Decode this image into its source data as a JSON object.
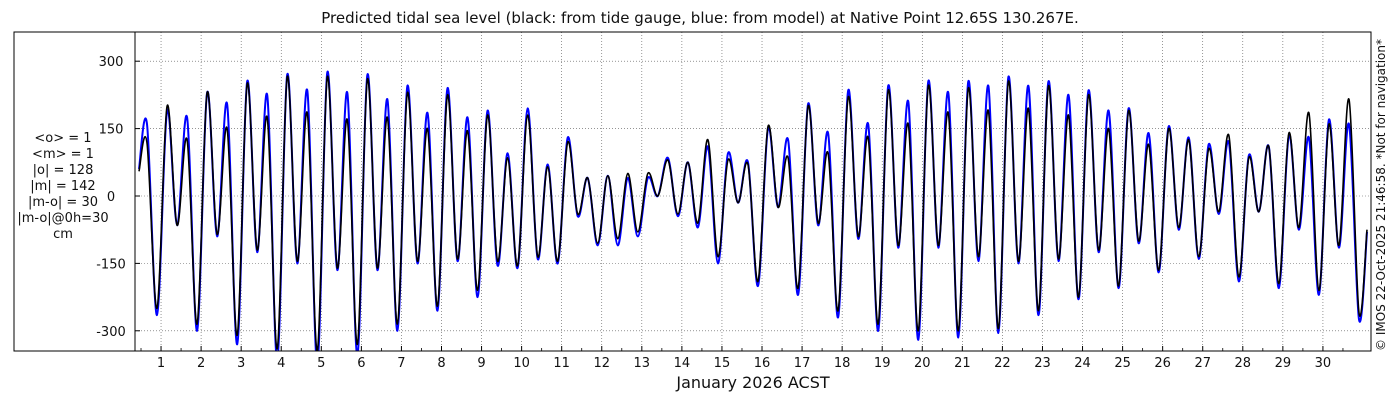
{
  "title": "Predicted tidal sea level (black: from tide gauge, blue: from model) at Native Point 12.65S 130.267E.",
  "stats": [
    "<o> = 1",
    "<m> = 1",
    "|o| = 128",
    "|m| = 142",
    "|m-o| = 30",
    "|m-o|@0h=30",
    "cm"
  ],
  "copyright": "© IMOS 22-Oct-2025 21:46:58. *Not for navigation*",
  "colors": {
    "observed": "#000000",
    "model": "#0000ff",
    "grid": "#555555",
    "axis": "#000000"
  },
  "chart_data": {
    "type": "line",
    "title": "Predicted tidal sea level (black: from tide gauge, blue: from model) at Native Point 12.65S 130.267E.",
    "xlabel": "January 2026 ACST",
    "ylabel": "",
    "x_unit": "day of January 2026",
    "xlim": [
      0.35,
      31.2
    ],
    "ylim": [
      -345,
      365
    ],
    "x_ticks": [
      1,
      2,
      3,
      4,
      5,
      6,
      7,
      8,
      9,
      10,
      11,
      12,
      13,
      14,
      15,
      16,
      17,
      18,
      19,
      20,
      21,
      22,
      23,
      24,
      25,
      26,
      27,
      28,
      29,
      30
    ],
    "y_ticks": [
      -300,
      -150,
      0,
      150,
      300
    ],
    "grid": true,
    "legend": "none",
    "series": [
      {
        "color": "#0000ff",
        "points": [
          [
            0.45,
            60
          ],
          [
            0.65,
            160
          ],
          [
            0.9,
            -265
          ],
          [
            1.15,
            190
          ],
          [
            1.4,
            -65
          ],
          [
            1.65,
            175
          ],
          [
            1.9,
            -300
          ],
          [
            2.15,
            230
          ],
          [
            2.4,
            -90
          ],
          [
            2.65,
            205
          ],
          [
            2.9,
            -330
          ],
          [
            3.15,
            255
          ],
          [
            3.4,
            -125
          ],
          [
            3.65,
            225
          ],
          [
            3.9,
            -365
          ],
          [
            4.15,
            270
          ],
          [
            4.4,
            -150
          ],
          [
            4.65,
            235
          ],
          [
            4.9,
            -375
          ],
          [
            5.15,
            275
          ],
          [
            5.4,
            -165
          ],
          [
            5.65,
            230
          ],
          [
            5.9,
            -355
          ],
          [
            6.15,
            270
          ],
          [
            6.4,
            -165
          ],
          [
            6.65,
            215
          ],
          [
            6.9,
            -300
          ],
          [
            7.15,
            245
          ],
          [
            7.4,
            -150
          ],
          [
            7.65,
            185
          ],
          [
            7.9,
            -255
          ],
          [
            8.15,
            240
          ],
          [
            8.4,
            -145
          ],
          [
            8.65,
            175
          ],
          [
            8.9,
            -225
          ],
          [
            9.15,
            190
          ],
          [
            9.4,
            -155
          ],
          [
            9.65,
            95
          ],
          [
            9.9,
            -160
          ],
          [
            10.15,
            195
          ],
          [
            10.4,
            -140
          ],
          [
            10.65,
            70
          ],
          [
            10.9,
            -150
          ],
          [
            11.15,
            130
          ],
          [
            11.4,
            -45
          ],
          [
            11.65,
            40
          ],
          [
            11.9,
            -110
          ],
          [
            12.15,
            45
          ],
          [
            12.4,
            -110
          ],
          [
            12.65,
            40
          ],
          [
            12.9,
            -90
          ],
          [
            13.15,
            40
          ],
          [
            13.4,
            0
          ],
          [
            13.65,
            85
          ],
          [
            13.9,
            -45
          ],
          [
            14.15,
            75
          ],
          [
            14.4,
            -70
          ],
          [
            14.65,
            110
          ],
          [
            14.9,
            -150
          ],
          [
            15.15,
            95
          ],
          [
            15.4,
            -15
          ],
          [
            15.65,
            75
          ],
          [
            15.9,
            -200
          ],
          [
            16.15,
            150
          ],
          [
            16.4,
            -25
          ],
          [
            16.65,
            125
          ],
          [
            16.9,
            -220
          ],
          [
            17.15,
            205
          ],
          [
            17.4,
            -65
          ],
          [
            17.65,
            140
          ],
          [
            17.9,
            -270
          ],
          [
            18.15,
            235
          ],
          [
            18.4,
            -95
          ],
          [
            18.65,
            160
          ],
          [
            18.9,
            -300
          ],
          [
            19.15,
            245
          ],
          [
            19.4,
            -115
          ],
          [
            19.65,
            210
          ],
          [
            19.9,
            -320
          ],
          [
            20.15,
            255
          ],
          [
            20.4,
            -115
          ],
          [
            20.65,
            230
          ],
          [
            20.9,
            -315
          ],
          [
            21.15,
            255
          ],
          [
            21.4,
            -145
          ],
          [
            21.65,
            245
          ],
          [
            21.9,
            -305
          ],
          [
            22.15,
            265
          ],
          [
            22.4,
            -150
          ],
          [
            22.65,
            245
          ],
          [
            22.9,
            -265
          ],
          [
            23.15,
            255
          ],
          [
            23.4,
            -145
          ],
          [
            23.65,
            225
          ],
          [
            23.9,
            -230
          ],
          [
            24.15,
            235
          ],
          [
            24.4,
            -125
          ],
          [
            24.65,
            190
          ],
          [
            24.9,
            -205
          ],
          [
            25.15,
            195
          ],
          [
            25.4,
            -105
          ],
          [
            25.65,
            140
          ],
          [
            25.9,
            -170
          ],
          [
            26.15,
            155
          ],
          [
            26.4,
            -75
          ],
          [
            26.65,
            130
          ],
          [
            26.9,
            -140
          ],
          [
            27.15,
            115
          ],
          [
            27.4,
            -40
          ],
          [
            27.65,
            120
          ],
          [
            27.9,
            -190
          ],
          [
            28.15,
            90
          ],
          [
            28.4,
            -35
          ],
          [
            28.65,
            110
          ],
          [
            28.9,
            -205
          ],
          [
            29.15,
            135
          ],
          [
            29.4,
            -75
          ],
          [
            29.65,
            130
          ],
          [
            29.9,
            -220
          ],
          [
            30.15,
            170
          ],
          [
            30.4,
            -115
          ],
          [
            30.65,
            160
          ],
          [
            30.9,
            -275
          ],
          [
            31.1,
            -80
          ]
        ]
      },
      {
        "color": "#000000",
        "points": [
          [
            0.45,
            55
          ],
          [
            0.65,
            118
          ],
          [
            0.9,
            -250
          ],
          [
            1.15,
            200
          ],
          [
            1.4,
            -65
          ],
          [
            1.65,
            125
          ],
          [
            1.9,
            -285
          ],
          [
            2.15,
            230
          ],
          [
            2.4,
            -85
          ],
          [
            2.65,
            150
          ],
          [
            2.9,
            -310
          ],
          [
            3.15,
            250
          ],
          [
            3.4,
            -120
          ],
          [
            3.65,
            175
          ],
          [
            3.9,
            -340
          ],
          [
            4.15,
            265
          ],
          [
            4.4,
            -145
          ],
          [
            4.65,
            185
          ],
          [
            4.9,
            -345
          ],
          [
            5.15,
            265
          ],
          [
            5.4,
            -160
          ],
          [
            5.65,
            170
          ],
          [
            5.9,
            -330
          ],
          [
            6.15,
            260
          ],
          [
            6.4,
            -160
          ],
          [
            6.65,
            175
          ],
          [
            6.9,
            -285
          ],
          [
            7.15,
            230
          ],
          [
            7.4,
            -145
          ],
          [
            7.65,
            150
          ],
          [
            7.9,
            -245
          ],
          [
            8.15,
            225
          ],
          [
            8.4,
            -140
          ],
          [
            8.65,
            145
          ],
          [
            8.9,
            -210
          ],
          [
            9.15,
            180
          ],
          [
            9.4,
            -145
          ],
          [
            9.65,
            85
          ],
          [
            9.9,
            -155
          ],
          [
            10.15,
            180
          ],
          [
            10.4,
            -135
          ],
          [
            10.65,
            65
          ],
          [
            10.9,
            -145
          ],
          [
            11.15,
            120
          ],
          [
            11.4,
            -40
          ],
          [
            11.65,
            40
          ],
          [
            11.9,
            -105
          ],
          [
            12.15,
            45
          ],
          [
            12.4,
            -95
          ],
          [
            12.65,
            50
          ],
          [
            12.9,
            -80
          ],
          [
            13.15,
            50
          ],
          [
            13.4,
            0
          ],
          [
            13.65,
            80
          ],
          [
            13.9,
            -40
          ],
          [
            14.15,
            75
          ],
          [
            14.4,
            -60
          ],
          [
            14.65,
            125
          ],
          [
            14.9,
            -135
          ],
          [
            15.15,
            80
          ],
          [
            15.4,
            -15
          ],
          [
            15.65,
            70
          ],
          [
            15.9,
            -190
          ],
          [
            16.15,
            155
          ],
          [
            16.4,
            -25
          ],
          [
            16.65,
            85
          ],
          [
            16.9,
            -205
          ],
          [
            17.15,
            200
          ],
          [
            17.4,
            -60
          ],
          [
            17.65,
            95
          ],
          [
            17.9,
            -255
          ],
          [
            18.15,
            220
          ],
          [
            18.4,
            -90
          ],
          [
            18.65,
            130
          ],
          [
            18.9,
            -285
          ],
          [
            19.15,
            235
          ],
          [
            19.4,
            -110
          ],
          [
            19.65,
            160
          ],
          [
            19.9,
            -300
          ],
          [
            20.15,
            245
          ],
          [
            20.4,
            -110
          ],
          [
            20.65,
            185
          ],
          [
            20.9,
            -300
          ],
          [
            21.15,
            240
          ],
          [
            21.4,
            -135
          ],
          [
            21.65,
            190
          ],
          [
            21.9,
            -295
          ],
          [
            22.15,
            255
          ],
          [
            22.4,
            -145
          ],
          [
            22.65,
            195
          ],
          [
            22.9,
            -255
          ],
          [
            23.15,
            245
          ],
          [
            23.4,
            -140
          ],
          [
            23.65,
            180
          ],
          [
            23.9,
            -225
          ],
          [
            24.15,
            225
          ],
          [
            24.4,
            -120
          ],
          [
            24.65,
            150
          ],
          [
            24.9,
            -200
          ],
          [
            25.15,
            190
          ],
          [
            25.4,
            -100
          ],
          [
            25.65,
            115
          ],
          [
            25.9,
            -165
          ],
          [
            26.15,
            150
          ],
          [
            26.4,
            -70
          ],
          [
            26.65,
            125
          ],
          [
            26.9,
            -135
          ],
          [
            27.15,
            105
          ],
          [
            27.4,
            -35
          ],
          [
            27.65,
            135
          ],
          [
            27.9,
            -180
          ],
          [
            28.15,
            85
          ],
          [
            28.4,
            -35
          ],
          [
            28.65,
            110
          ],
          [
            28.9,
            -195
          ],
          [
            29.15,
            140
          ],
          [
            29.4,
            -70
          ],
          [
            29.65,
            185
          ],
          [
            29.9,
            -210
          ],
          [
            30.15,
            160
          ],
          [
            30.4,
            -110
          ],
          [
            30.65,
            215
          ],
          [
            30.9,
            -260
          ],
          [
            31.1,
            -75
          ]
        ]
      }
    ]
  }
}
